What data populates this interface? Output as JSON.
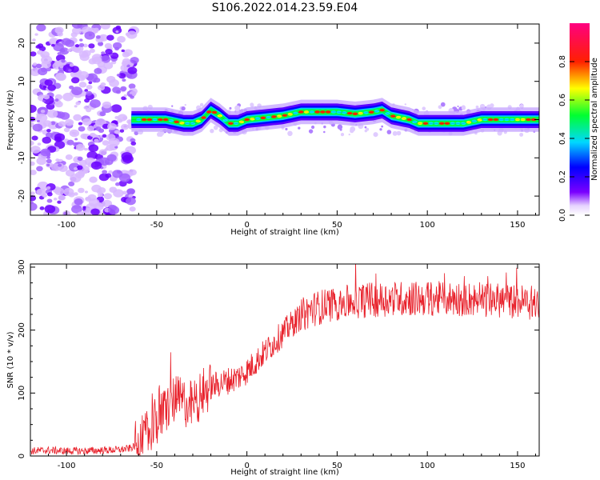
{
  "title": "S106.2022.014.23.59.E04",
  "chart_data": [
    {
      "type": "heatmap",
      "xlabel": "Height of straight line (km)",
      "ylabel": "Frequency (Hz)",
      "xlim": [
        -120,
        162
      ],
      "ylim": [
        -25,
        25
      ],
      "xticks": [
        -100,
        -50,
        0,
        50,
        100,
        150
      ],
      "yticks": [
        -20,
        -10,
        0,
        10,
        20
      ],
      "colorbar": {
        "label": "Normalized spectral amplitude",
        "range": [
          0,
          1
        ],
        "ticks": [
          "0.0",
          "0.2",
          "0.4",
          "0.6",
          "0.8"
        ],
        "colormap": "rainbow (white/violet → blue → cyan → green → yellow → red → magenta)"
      },
      "ridge": {
        "x": [
          -65,
          -55,
          -45,
          -35,
          -30,
          -25,
          -20,
          -15,
          -10,
          -5,
          0,
          10,
          20,
          30,
          40,
          50,
          60,
          70,
          75,
          80,
          90,
          95,
          100,
          110,
          120,
          130,
          140,
          150,
          162
        ],
        "frequency": [
          0,
          0,
          0,
          -1,
          -1,
          0,
          2.5,
          1,
          -1,
          -1,
          0,
          0.5,
          1,
          2,
          2,
          2,
          1.5,
          2,
          2.5,
          1,
          0,
          -1,
          -1,
          -1,
          -1,
          0,
          0,
          0,
          0
        ]
      },
      "noise_region": {
        "x_range": [
          -120,
          -62
        ],
        "frequency_range": [
          -25,
          25
        ]
      }
    },
    {
      "type": "line",
      "xlabel": "Height of straight line (km)",
      "ylabel": "SNR (10 * v/v)",
      "xlim": [
        -120,
        162
      ],
      "ylim": [
        0,
        305
      ],
      "xticks": [
        -100,
        -50,
        0,
        50,
        100,
        150
      ],
      "yticks": [
        0,
        100,
        200,
        300
      ],
      "color": "#e8202a",
      "series": [
        {
          "x": [
            -120,
            -110,
            -100,
            -90,
            -80,
            -70,
            -65,
            -60,
            -55,
            -50,
            -45,
            -40,
            -35,
            -30,
            -25,
            -20,
            -15,
            -10,
            -5,
            0,
            5,
            10,
            15,
            20,
            25,
            30,
            35,
            40,
            45,
            50,
            60,
            70,
            80,
            90,
            100,
            110,
            120,
            130,
            140,
            150,
            162
          ],
          "values": [
            8,
            9,
            8,
            8,
            9,
            10,
            12,
            18,
            35,
            55,
            75,
            90,
            85,
            80,
            100,
            110,
            115,
            120,
            125,
            135,
            150,
            165,
            180,
            195,
            210,
            222,
            232,
            236,
            240,
            242,
            246,
            248,
            250,
            250,
            250,
            250,
            250,
            248,
            247,
            246,
            242
          ]
        }
      ]
    }
  ]
}
